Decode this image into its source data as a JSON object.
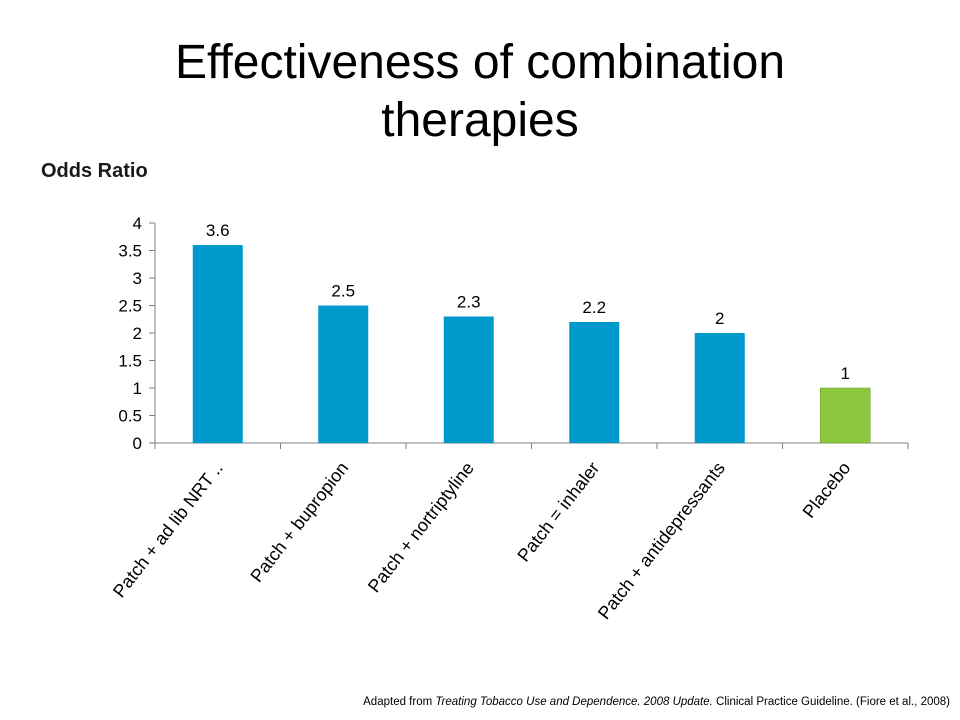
{
  "title": "Effectiveness of combination therapies",
  "footnote": {
    "prefix": "Adapted from ",
    "source_title": "Treating Tobacco Use and Dependence.  2008 Update.",
    "suffix": " Clinical Practice Guideline. (Fiore et al., 2008)"
  },
  "chart_data": {
    "type": "bar",
    "ylabel": "Odds Ratio",
    "categories": [
      "Patch  + ad lib NRT ..",
      "Patch + bupropion",
      "Patch + nortriptyline",
      "Patch = inhaler",
      "Patch + antidepressants",
      "Placebo"
    ],
    "values": [
      3.6,
      2.5,
      2.3,
      2.2,
      2,
      1
    ],
    "data_labels": [
      "3.6",
      "2.5",
      "2.3",
      "2.2",
      "2",
      "1"
    ],
    "ylim": [
      0,
      4
    ],
    "yticks": [
      "0",
      "0.5",
      "1",
      "1.5",
      "2",
      "2.5",
      "3",
      "3.5",
      "4"
    ],
    "colors": [
      "#0099CC",
      "#0099CC",
      "#0099CC",
      "#0099CC",
      "#0099CC",
      "#8DC63F"
    ],
    "grid": false,
    "legend": "none"
  }
}
